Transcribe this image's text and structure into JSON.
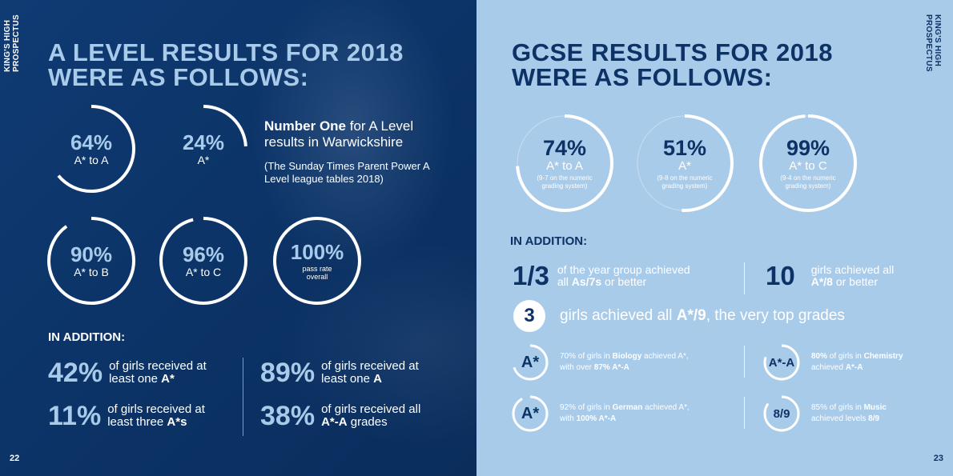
{
  "left_page": {
    "side_tag_line1": "KING'S HIGH",
    "side_tag_line2": "PROSPECTUS",
    "heading_line1": "A LEVEL RESULTS FOR 2018",
    "heading_line2": "WERE AS FOLLOWS:",
    "circles": [
      {
        "pct": "64%",
        "label": "A* to A",
        "value": 0.64
      },
      {
        "pct": "24%",
        "label": "A*",
        "value": 0.24
      },
      {
        "pct": "90%",
        "label": "A* to B",
        "value": 0.9
      },
      {
        "pct": "96%",
        "label": "A* to C",
        "value": 0.96
      },
      {
        "pct": "100%",
        "label": "pass rate",
        "label2": "overall",
        "value": 1.0
      }
    ],
    "number_one": {
      "bold": "Number One",
      "rest": " for A Level results in Warwickshire",
      "note": "(The Sunday Times Parent Power A Level league tables 2018)"
    },
    "addition_title": "IN ADDITION:",
    "stats": [
      {
        "big": "42%",
        "line1": "of girls received at",
        "line2_pre": "least one ",
        "line2_bold": "A*",
        "line2_post": ""
      },
      {
        "big": "89%",
        "line1": "of girls received at",
        "line2_pre": "least one ",
        "line2_bold": "A",
        "line2_post": ""
      },
      {
        "big": "11%",
        "line1": "of girls received at",
        "line2_pre": "least three ",
        "line2_bold": "A*s",
        "line2_post": ""
      },
      {
        "big": "38%",
        "line1": "of girls received all",
        "line2_pre": "",
        "line2_bold": "A*-A",
        "line2_post": " grades"
      }
    ],
    "page_number": "22"
  },
  "right_page": {
    "side_tag_line1": "KING'S HIGH",
    "side_tag_line2": "PROSPECTUS",
    "heading_line1": "GCSE RESULTS FOR 2018",
    "heading_line2": "WERE AS FOLLOWS:",
    "circles": [
      {
        "pct": "74%",
        "label": "A* to A",
        "sub1": "(9-7 on the numeric",
        "sub2": "grading system)",
        "value": 0.74
      },
      {
        "pct": "51%",
        "label": "A*",
        "sub1": "(9-8 on the numeric",
        "sub2": "grading system)",
        "value": 0.51
      },
      {
        "pct": "99%",
        "label": "A* to C",
        "sub1": "(9-4 on the numeric",
        "sub2": "grading system)",
        "value": 0.99
      }
    ],
    "addition_title": "IN ADDITION:",
    "stat_a": {
      "big": "1/3",
      "line1": "of the year group achieved",
      "line2_pre": "all ",
      "line2_bold": "As/7s",
      "line2_post": " or better"
    },
    "stat_b": {
      "big": "10",
      "line1": "girls achieved all",
      "line2_pre": "",
      "line2_bold": "A*/8",
      "line2_post": " or better"
    },
    "three": {
      "num": "3",
      "pre": "girls achieved all ",
      "bold": "A*/9",
      "post": ", the very top grades"
    },
    "subjects": [
      {
        "badge": "A*",
        "value": 0.7,
        "l1_pre": "70% of girls in ",
        "l1_bold": "Biology",
        "l1_post": " achieved A*,",
        "l2_pre": "with over ",
        "l2_bold": "87% A*-A",
        "l2_post": ""
      },
      {
        "badge": "A*-A",
        "value": 0.8,
        "l1_pre": "",
        "l1_bold": "80%",
        "l1_post": " of girls in ",
        "l1_bold2": "Chemistry",
        "l2_pre": "achieved ",
        "l2_bold": "A*-A",
        "l2_post": ""
      },
      {
        "badge": "A*",
        "value": 0.92,
        "l1_pre": "92% of girls in ",
        "l1_bold": "German",
        "l1_post": " achieved A*,",
        "l2_pre": "with ",
        "l2_bold": "100% A*-A",
        "l2_post": ""
      },
      {
        "badge": "8/9",
        "value": 0.85,
        "l1_pre": "85% of girls in ",
        "l1_bold": "Music",
        "l1_post": "",
        "l2_pre": "achieved levels ",
        "l2_bold": "8/9",
        "l2_post": ""
      }
    ],
    "page_number": "23"
  },
  "colors": {
    "navy": "#0d3366",
    "light_blue": "#a9cbea",
    "white": "#ffffff"
  }
}
